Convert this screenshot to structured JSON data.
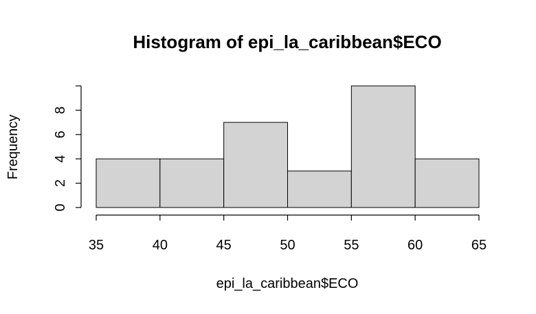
{
  "chart_data": {
    "type": "bar",
    "title": "Histogram of epi_la_caribbean$ECO",
    "xlabel": "epi_la_caribbean$ECO",
    "ylabel": "Frequency",
    "bins": [
      {
        "start": 35,
        "end": 40,
        "count": 4
      },
      {
        "start": 40,
        "end": 45,
        "count": 4
      },
      {
        "start": 45,
        "end": 50,
        "count": 7
      },
      {
        "start": 50,
        "end": 55,
        "count": 3
      },
      {
        "start": 55,
        "end": 60,
        "count": 10
      },
      {
        "start": 60,
        "end": 65,
        "count": 4
      }
    ],
    "xlim": [
      35,
      65
    ],
    "ylim": [
      0,
      10
    ],
    "xticks": [
      35,
      40,
      45,
      50,
      55,
      60,
      65
    ],
    "yticks": [
      0,
      2,
      4,
      6,
      8
    ],
    "grid": false,
    "colors": {
      "bar_fill": "#d3d3d3",
      "bar_stroke": "#000000"
    }
  }
}
